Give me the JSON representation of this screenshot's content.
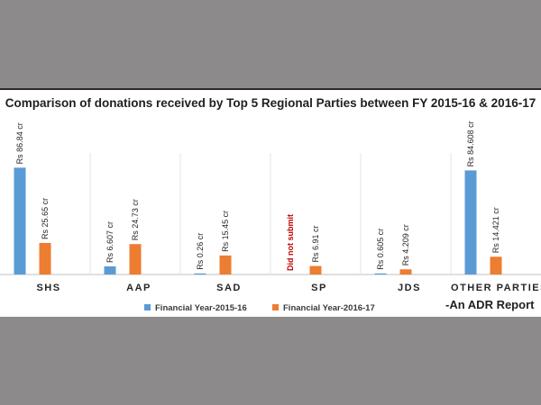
{
  "colors": {
    "background": "#8c8a8b",
    "panel": "#ffffff",
    "series_2015_16": "#5b9bd5",
    "series_2016_17": "#ed7d31",
    "missing_label": "#c00000",
    "axis": "#bfbfbf"
  },
  "chart_data": {
    "type": "bar",
    "title": "Comparison of donations received by Top 5 Regional Parties between FY 2015-16 & 2016-17",
    "categories": [
      "SHS",
      "AAP",
      "SAD",
      "SP",
      "JDS",
      "OTHER PARTIES"
    ],
    "series": [
      {
        "name": "Financial Year-2015-16",
        "color": "#5b9bd5",
        "values": [
          86.84,
          6.607,
          0.26,
          null,
          0.605,
          84.608
        ],
        "labels": [
          "Rs 86.84 cr",
          "Rs 6.607 cr",
          "Rs 0.26 cr",
          "Did not submit",
          "Rs 0.605 cr",
          "Rs 84.608 cr"
        ]
      },
      {
        "name": "Financial Year-2016-17",
        "color": "#ed7d31",
        "values": [
          25.65,
          24.73,
          15.45,
          6.91,
          4.209,
          14.421
        ],
        "labels": [
          "Rs 25.65 cr",
          "Rs 24.73 cr",
          "Rs 15.45 cr",
          "Rs 6.91 cr",
          "Rs 4.209 cr",
          "Rs 14.421 cr"
        ]
      }
    ],
    "xlabel": "",
    "ylabel": "",
    "ylim": [
      0,
      90
    ],
    "grid": false,
    "legend_position": "bottom"
  },
  "source_note": "-An ADR Report"
}
